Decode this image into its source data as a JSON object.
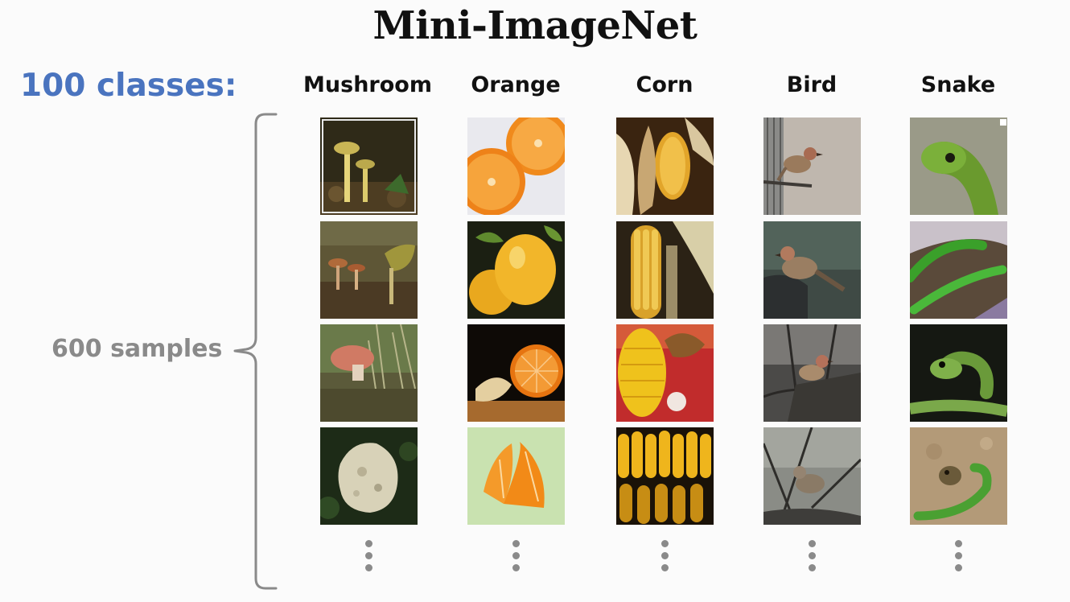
{
  "title": "Mini-ImageNet",
  "classes_label": "100 classes:",
  "samples_label": "600 samples",
  "columns": [
    {
      "label": "Mushroom"
    },
    {
      "label": "Orange"
    },
    {
      "label": "Corn"
    },
    {
      "label": "Bird"
    },
    {
      "label": "Snake"
    }
  ],
  "colors": {
    "title": "#111111",
    "classes_label": "#4a74bf",
    "samples_label": "#8a8a8a",
    "brace": "#8a8a8a",
    "background": "#fbfbfb"
  },
  "images_per_column_shown": 4,
  "continuation": "vertical ellipsis"
}
